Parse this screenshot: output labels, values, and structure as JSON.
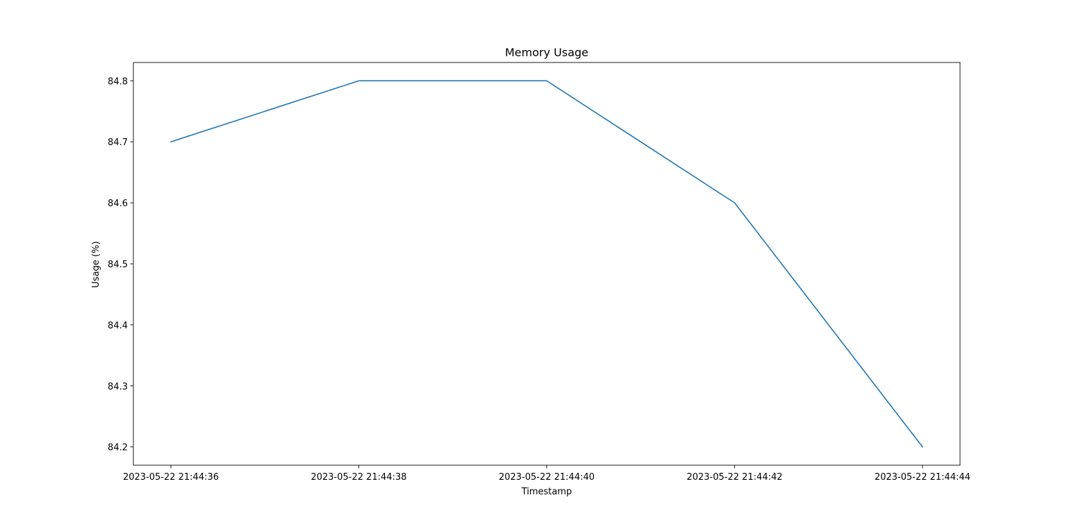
{
  "chart_data": {
    "type": "line",
    "title": "Memory Usage",
    "xlabel": "Timestamp",
    "ylabel": "Usage (%)",
    "x": [
      "2023-05-22 21:44:36",
      "2023-05-22 21:44:38",
      "2023-05-22 21:44:40",
      "2023-05-22 21:44:42",
      "2023-05-22 21:44:44"
    ],
    "series": [
      {
        "values": [
          84.7,
          84.8,
          84.8,
          84.6,
          84.2
        ],
        "color": "#1f77b4"
      }
    ],
    "xticks": [
      "2023-05-22 21:44:36",
      "2023-05-22 21:44:38",
      "2023-05-22 21:44:40",
      "2023-05-22 21:44:42",
      "2023-05-22 21:44:44"
    ],
    "yticks": [
      "84.2",
      "84.3",
      "84.4",
      "84.5",
      "84.6",
      "84.7",
      "84.8"
    ],
    "ylim": [
      84.17,
      84.83
    ],
    "grid": false,
    "legend": "none"
  }
}
